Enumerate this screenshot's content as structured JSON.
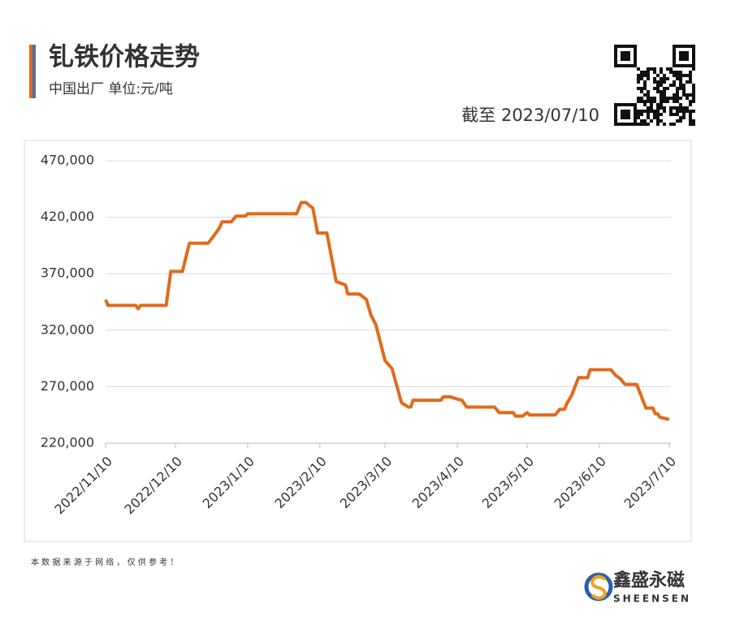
{
  "chart_data": {
    "type": "line",
    "title": "钆铁价格走势",
    "subtitle": "中国出厂 单位:元/吨",
    "as_of": "截至 2023/07/10",
    "footer": "本 数 据 来 源 于 网 络 ， 仅 供 参 考 ！",
    "brand": "鑫盛永磁",
    "brand_en": "SHEENSEN",
    "color": "#e06a1b",
    "grid": true,
    "x": [
      "2022/11/10",
      "2022/11/11",
      "2022/11/23",
      "2022/11/24",
      "2022/11/25",
      "2022/12/6",
      "2022/12/8",
      "2022/12/13",
      "2022/12/16",
      "2022/12/24",
      "2022/12/27",
      "2022/12/29",
      "2022/12/30",
      "2023/1/3",
      "2023/1/5",
      "2023/1/9",
      "2023/1/10",
      "2023/1/31",
      "2023/2/2",
      "2023/2/4",
      "2023/2/7",
      "2023/2/9",
      "2023/2/13",
      "2023/2/17",
      "2023/2/21",
      "2023/2/22",
      "2023/2/27",
      "2023/3/2",
      "2023/3/4",
      "2023/3/6",
      "2023/3/10",
      "2023/3/13",
      "2023/3/17",
      "2023/3/20",
      "2023/3/21",
      "2023/3/22",
      "2023/4/3",
      "2023/4/4",
      "2023/4/7",
      "2023/4/10",
      "2023/4/12",
      "2023/4/14",
      "2023/4/26",
      "2023/4/28",
      "2023/5/4",
      "2023/5/5",
      "2023/5/8",
      "2023/5/10",
      "2023/5/11",
      "2023/5/22",
      "2023/5/24",
      "2023/5/26",
      "2023/5/27",
      "2023/5/29",
      "2023/6/1",
      "2023/6/5",
      "2023/6/6",
      "2023/6/15",
      "2023/6/17",
      "2023/6/19",
      "2023/6/21",
      "2023/6/26",
      "2023/6/30",
      "2023/7/3",
      "2023/7/4",
      "2023/7/5",
      "2023/7/6",
      "2023/7/10"
    ],
    "values": [
      347000,
      342000,
      342000,
      339000,
      342000,
      342000,
      372000,
      372000,
      397000,
      397000,
      405000,
      411000,
      416000,
      416000,
      421000,
      421000,
      423000,
      423000,
      433000,
      433000,
      428000,
      406000,
      406000,
      363000,
      360000,
      352000,
      352000,
      347000,
      333000,
      325000,
      293000,
      286000,
      256000,
      252000,
      252000,
      258000,
      258000,
      261000,
      261000,
      259000,
      258000,
      252000,
      252000,
      247000,
      247000,
      244000,
      244000,
      247000,
      245000,
      245000,
      250000,
      250000,
      255000,
      262000,
      278000,
      278000,
      285000,
      285000,
      280000,
      277000,
      272000,
      272000,
      251000,
      251000,
      246000,
      246000,
      243000,
      241000
    ],
    "xlim": [
      "2022/11/10",
      "2023/7/10"
    ],
    "xticks": [
      "2022/11/10",
      "2022/12/10",
      "2023/1/10",
      "2023/2/10",
      "2023/3/10",
      "2023/4/10",
      "2023/5/10",
      "2023/6/10",
      "2023/7/10"
    ],
    "ylim": [
      220000,
      470000
    ],
    "yticks": [
      {
        "value": 220000,
        "label": "220,000"
      },
      {
        "value": 270000,
        "label": "270,000"
      },
      {
        "value": 320000,
        "label": "320,000"
      },
      {
        "value": 370000,
        "label": "370,000"
      },
      {
        "value": 420000,
        "label": "420,000"
      },
      {
        "value": 470000,
        "label": "470,000"
      }
    ]
  }
}
